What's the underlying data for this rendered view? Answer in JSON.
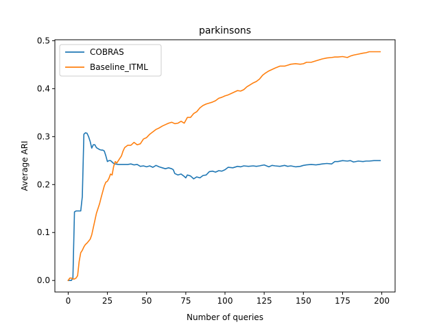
{
  "chart_data": {
    "type": "line",
    "title": "parkinsons",
    "xlabel": "Number of queries",
    "ylabel": "Average ARI",
    "xlim": [
      -8.5,
      208.5
    ],
    "ylim": [
      -0.024,
      0.502
    ],
    "xticks": [
      0,
      25,
      50,
      75,
      100,
      125,
      150,
      175,
      200
    ],
    "xtick_labels": [
      "0",
      "25",
      "50",
      "75",
      "100",
      "125",
      "150",
      "175",
      "200"
    ],
    "yticks": [
      0.0,
      0.1,
      0.2,
      0.3,
      0.4,
      0.5
    ],
    "ytick_labels": [
      "0.0",
      "0.1",
      "0.2",
      "0.3",
      "0.4",
      "0.5"
    ],
    "grid": false,
    "legend_position": "top-left",
    "series": [
      {
        "name": "COBRAS",
        "color": "#1f77b4",
        "x": [
          0,
          1,
          2,
          3,
          4,
          5,
          6,
          7,
          8,
          9,
          10,
          11,
          12,
          13,
          14,
          15,
          16,
          17,
          18,
          19,
          20,
          21,
          22,
          23,
          24,
          25,
          26,
          27,
          28,
          29,
          30,
          32,
          35,
          38,
          40,
          42,
          44,
          46,
          48,
          50,
          52,
          54,
          56,
          58,
          60,
          62,
          64,
          66,
          67,
          68,
          70,
          72,
          74,
          75,
          76,
          78,
          80,
          82,
          84,
          86,
          88,
          90,
          92,
          94,
          96,
          98,
          100,
          102,
          105,
          108,
          110,
          112,
          115,
          118,
          120,
          122,
          125,
          128,
          130,
          132,
          135,
          138,
          140,
          142,
          145,
          148,
          150,
          152,
          155,
          158,
          160,
          162,
          165,
          168,
          170,
          172,
          175,
          178,
          180,
          182,
          185,
          188,
          190,
          192,
          195,
          199
        ],
        "y": [
          0.0,
          0.0,
          0.0,
          0.005,
          0.143,
          0.145,
          0.145,
          0.145,
          0.145,
          0.175,
          0.305,
          0.308,
          0.307,
          0.3,
          0.29,
          0.276,
          0.283,
          0.283,
          0.277,
          0.275,
          0.273,
          0.272,
          0.272,
          0.27,
          0.26,
          0.248,
          0.25,
          0.25,
          0.247,
          0.244,
          0.243,
          0.242,
          0.242,
          0.242,
          0.243,
          0.241,
          0.242,
          0.238,
          0.239,
          0.237,
          0.239,
          0.236,
          0.24,
          0.237,
          0.235,
          0.233,
          0.235,
          0.233,
          0.231,
          0.223,
          0.22,
          0.222,
          0.217,
          0.214,
          0.22,
          0.218,
          0.212,
          0.216,
          0.214,
          0.219,
          0.22,
          0.227,
          0.228,
          0.226,
          0.229,
          0.228,
          0.231,
          0.236,
          0.235,
          0.238,
          0.237,
          0.239,
          0.238,
          0.239,
          0.238,
          0.239,
          0.241,
          0.237,
          0.24,
          0.239,
          0.238,
          0.24,
          0.238,
          0.239,
          0.237,
          0.238,
          0.24,
          0.241,
          0.242,
          0.241,
          0.242,
          0.243,
          0.244,
          0.243,
          0.248,
          0.248,
          0.25,
          0.249,
          0.25,
          0.247,
          0.249,
          0.248,
          0.249,
          0.249,
          0.25,
          0.25
        ]
      },
      {
        "name": "Baseline_ITML",
        "color": "#ff7f0e",
        "x": [
          0,
          1,
          2,
          3,
          4,
          5,
          6,
          7,
          8,
          9,
          10,
          11,
          12,
          13,
          14,
          15,
          16,
          17,
          18,
          19,
          20,
          21,
          22,
          23,
          24,
          25,
          26,
          27,
          28,
          29,
          30,
          31,
          32,
          33,
          34,
          35,
          36,
          38,
          40,
          42,
          44,
          46,
          48,
          50,
          52,
          54,
          56,
          58,
          60,
          62,
          64,
          66,
          68,
          70,
          72,
          74,
          76,
          78,
          80,
          82,
          84,
          86,
          88,
          90,
          92,
          94,
          96,
          98,
          100,
          102,
          104,
          106,
          108,
          110,
          112,
          114,
          116,
          118,
          120,
          122,
          124,
          126,
          128,
          130,
          132,
          135,
          138,
          140,
          142,
          145,
          148,
          150,
          152,
          155,
          158,
          160,
          162,
          165,
          168,
          170,
          172,
          175,
          178,
          180,
          182,
          185,
          188,
          190,
          192,
          195,
          199
        ],
        "y": [
          0.0,
          0.005,
          0.005,
          0.003,
          0.003,
          0.005,
          0.01,
          0.04,
          0.058,
          0.063,
          0.07,
          0.075,
          0.078,
          0.082,
          0.086,
          0.095,
          0.11,
          0.125,
          0.14,
          0.15,
          0.16,
          0.173,
          0.185,
          0.197,
          0.205,
          0.207,
          0.213,
          0.222,
          0.22,
          0.238,
          0.248,
          0.245,
          0.25,
          0.255,
          0.26,
          0.27,
          0.277,
          0.282,
          0.282,
          0.288,
          0.283,
          0.285,
          0.295,
          0.298,
          0.305,
          0.31,
          0.315,
          0.318,
          0.322,
          0.325,
          0.328,
          0.33,
          0.327,
          0.328,
          0.332,
          0.328,
          0.34,
          0.34,
          0.348,
          0.352,
          0.36,
          0.365,
          0.368,
          0.37,
          0.372,
          0.375,
          0.38,
          0.382,
          0.385,
          0.387,
          0.39,
          0.393,
          0.396,
          0.395,
          0.398,
          0.404,
          0.408,
          0.412,
          0.415,
          0.42,
          0.428,
          0.433,
          0.437,
          0.44,
          0.443,
          0.447,
          0.447,
          0.449,
          0.451,
          0.452,
          0.451,
          0.452,
          0.455,
          0.455,
          0.458,
          0.46,
          0.462,
          0.464,
          0.465,
          0.466,
          0.466,
          0.467,
          0.465,
          0.468,
          0.47,
          0.472,
          0.474,
          0.475,
          0.477,
          0.477,
          0.477
        ]
      }
    ]
  }
}
